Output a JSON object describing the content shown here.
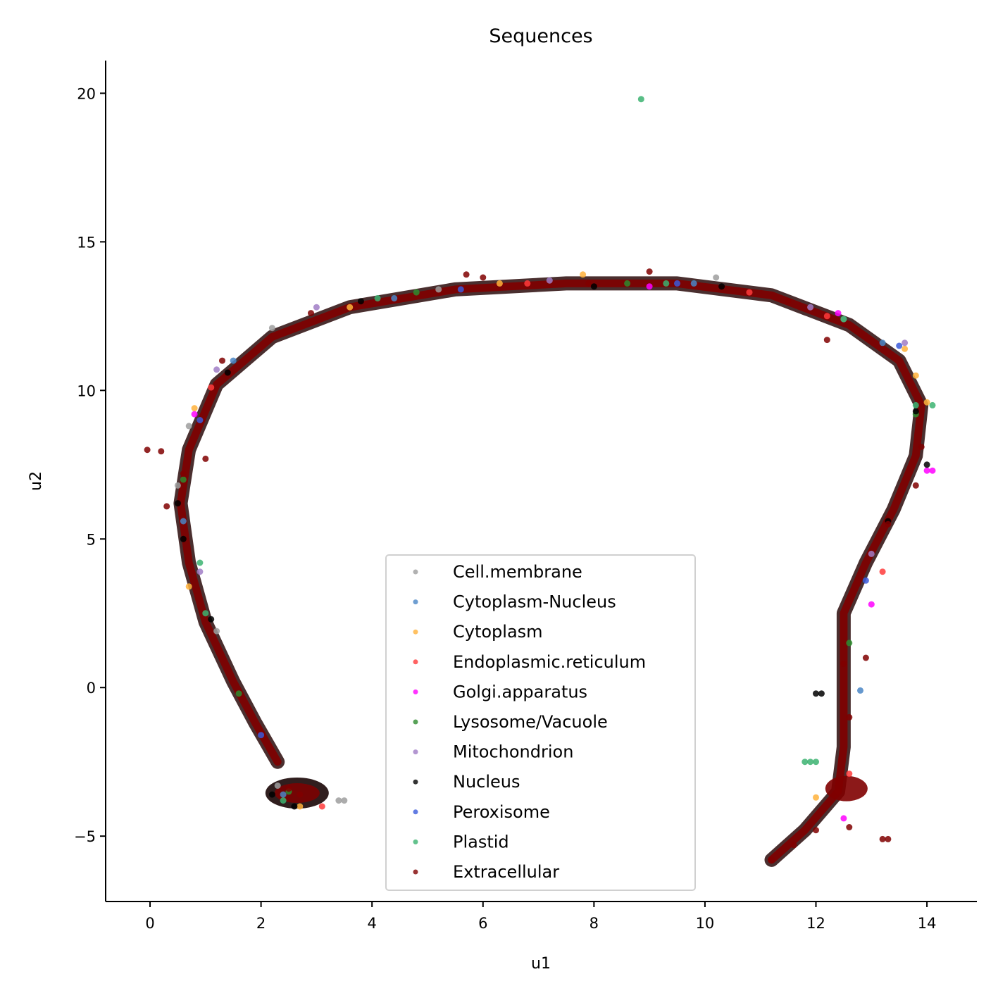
{
  "chart_data": {
    "type": "scatter",
    "title": "Sequences",
    "xlabel": "u1",
    "ylabel": "u2",
    "xlim": [
      -0.8,
      14.9
    ],
    "ylim": [
      -7.2,
      21.1
    ],
    "xticks": [
      0,
      2,
      4,
      6,
      8,
      10,
      12,
      14
    ],
    "yticks": [
      -5,
      0,
      5,
      10,
      15,
      20
    ],
    "grid": false,
    "legend_position": "lower center",
    "series": [
      {
        "name": "Cell.membrane",
        "color": "#9e9e9e",
        "points": [
          [
            0.7,
            8.8
          ],
          [
            2.2,
            12.1
          ],
          [
            3.4,
            -3.8
          ],
          [
            3.5,
            -3.8
          ],
          [
            10.2,
            13.8
          ],
          [
            0.5,
            6.8
          ],
          [
            1.2,
            1.9
          ],
          [
            2.3,
            -3.3
          ],
          [
            12.5,
            12.4
          ],
          [
            5.2,
            13.4
          ]
        ]
      },
      {
        "name": "Cytoplasm-Nucleus",
        "color": "#4a86c5",
        "points": [
          [
            1.5,
            11.0
          ],
          [
            4.4,
            13.1
          ],
          [
            9.8,
            13.6
          ],
          [
            13.2,
            11.6
          ],
          [
            0.6,
            5.6
          ],
          [
            2.4,
            -3.6
          ],
          [
            12.8,
            -0.1
          ]
        ]
      },
      {
        "name": "Cytoplasm",
        "color": "#ffb13b",
        "points": [
          [
            0.8,
            9.4
          ],
          [
            3.6,
            12.8
          ],
          [
            7.8,
            13.9
          ],
          [
            13.6,
            11.4
          ],
          [
            14.0,
            9.6
          ],
          [
            0.7,
            3.4
          ],
          [
            2.7,
            -4.0
          ],
          [
            12.0,
            -3.7
          ],
          [
            13.8,
            10.5
          ],
          [
            6.3,
            13.6
          ]
        ]
      },
      {
        "name": "Endoplasmic.reticulum",
        "color": "#ff3b3b",
        "points": [
          [
            1.1,
            10.1
          ],
          [
            3.1,
            -4.0
          ],
          [
            6.8,
            13.6
          ],
          [
            12.2,
            12.5
          ],
          [
            13.2,
            3.9
          ],
          [
            12.6,
            -2.9
          ],
          [
            10.8,
            13.3
          ]
        ]
      },
      {
        "name": "Golgi.apparatus",
        "color": "#ff00ff",
        "points": [
          [
            14.1,
            7.3
          ],
          [
            14.0,
            7.3
          ],
          [
            12.4,
            12.6
          ],
          [
            12.5,
            -4.4
          ],
          [
            13.0,
            2.8
          ],
          [
            0.8,
            9.2
          ],
          [
            9.0,
            13.5
          ]
        ]
      },
      {
        "name": "Lysosome/Vacuole",
        "color": "#2e8b2e",
        "points": [
          [
            0.6,
            7.0
          ],
          [
            1.6,
            -0.2
          ],
          [
            8.6,
            13.6
          ],
          [
            13.8,
            9.2
          ],
          [
            12.6,
            1.5
          ],
          [
            2.5,
            -3.5
          ],
          [
            4.8,
            13.3
          ]
        ]
      },
      {
        "name": "Mitochondrion",
        "color": "#a07cc5",
        "points": [
          [
            13.6,
            11.6
          ],
          [
            1.2,
            10.7
          ],
          [
            7.2,
            13.7
          ],
          [
            13.0,
            4.5
          ],
          [
            0.9,
            3.9
          ],
          [
            11.9,
            12.8
          ],
          [
            3.0,
            12.8
          ]
        ]
      },
      {
        "name": "Nucleus",
        "color": "#000000",
        "points": [
          [
            0.5,
            6.2
          ],
          [
            0.6,
            5.0
          ],
          [
            1.1,
            2.3
          ],
          [
            2.2,
            -3.6
          ],
          [
            2.6,
            -4.0
          ],
          [
            12.0,
            -0.2
          ],
          [
            12.1,
            -0.2
          ],
          [
            13.8,
            9.3
          ],
          [
            14.0,
            7.5
          ],
          [
            10.3,
            13.5
          ],
          [
            3.8,
            13.0
          ],
          [
            1.4,
            10.6
          ],
          [
            8.0,
            13.5
          ],
          [
            13.3,
            5.6
          ]
        ]
      },
      {
        "name": "Peroxisome",
        "color": "#3b5bdb",
        "points": [
          [
            13.5,
            11.5
          ],
          [
            0.9,
            9.0
          ],
          [
            5.6,
            13.4
          ],
          [
            12.9,
            3.6
          ],
          [
            2.0,
            -1.6
          ],
          [
            9.5,
            13.6
          ]
        ]
      },
      {
        "name": "Plastid",
        "color": "#3cb371",
        "points": [
          [
            8.85,
            19.8
          ],
          [
            11.8,
            -2.5
          ],
          [
            11.9,
            -2.5
          ],
          [
            12.0,
            -2.5
          ],
          [
            0.9,
            4.2
          ],
          [
            1.0,
            2.5
          ],
          [
            2.4,
            -3.8
          ],
          [
            13.8,
            9.5
          ],
          [
            14.1,
            9.5
          ],
          [
            4.1,
            13.1
          ],
          [
            9.3,
            13.6
          ],
          [
            12.5,
            12.4
          ]
        ]
      },
      {
        "name": "Extracellular",
        "color": "#800000",
        "points": [
          [
            -0.05,
            8.0
          ],
          [
            0.2,
            7.95
          ],
          [
            1.0,
            7.7
          ],
          [
            13.3,
            -5.1
          ],
          [
            13.2,
            -5.1
          ],
          [
            11.2,
            -5.8
          ],
          [
            11.6,
            -5.3
          ],
          [
            12.0,
            -4.8
          ],
          [
            12.4,
            -3.5
          ],
          [
            12.6,
            -1.0
          ],
          [
            12.5,
            0.8
          ],
          [
            12.9,
            1.0
          ],
          [
            12.6,
            -4.7
          ],
          [
            13.9,
            8.1
          ],
          [
            13.8,
            6.8
          ],
          [
            9.0,
            14.0
          ],
          [
            5.7,
            13.9
          ],
          [
            6.0,
            13.8
          ],
          [
            12.2,
            11.7
          ],
          [
            0.6,
            7.2
          ],
          [
            0.3,
            6.1
          ],
          [
            1.3,
            11.0
          ],
          [
            2.9,
            12.6
          ],
          [
            7.9,
            13.6
          ],
          [
            11.5,
            13.0
          ],
          [
            13.3,
            5.5
          ],
          [
            2.7,
            -3.6
          ],
          [
            2.5,
            -3.4
          ]
        ]
      }
    ]
  }
}
